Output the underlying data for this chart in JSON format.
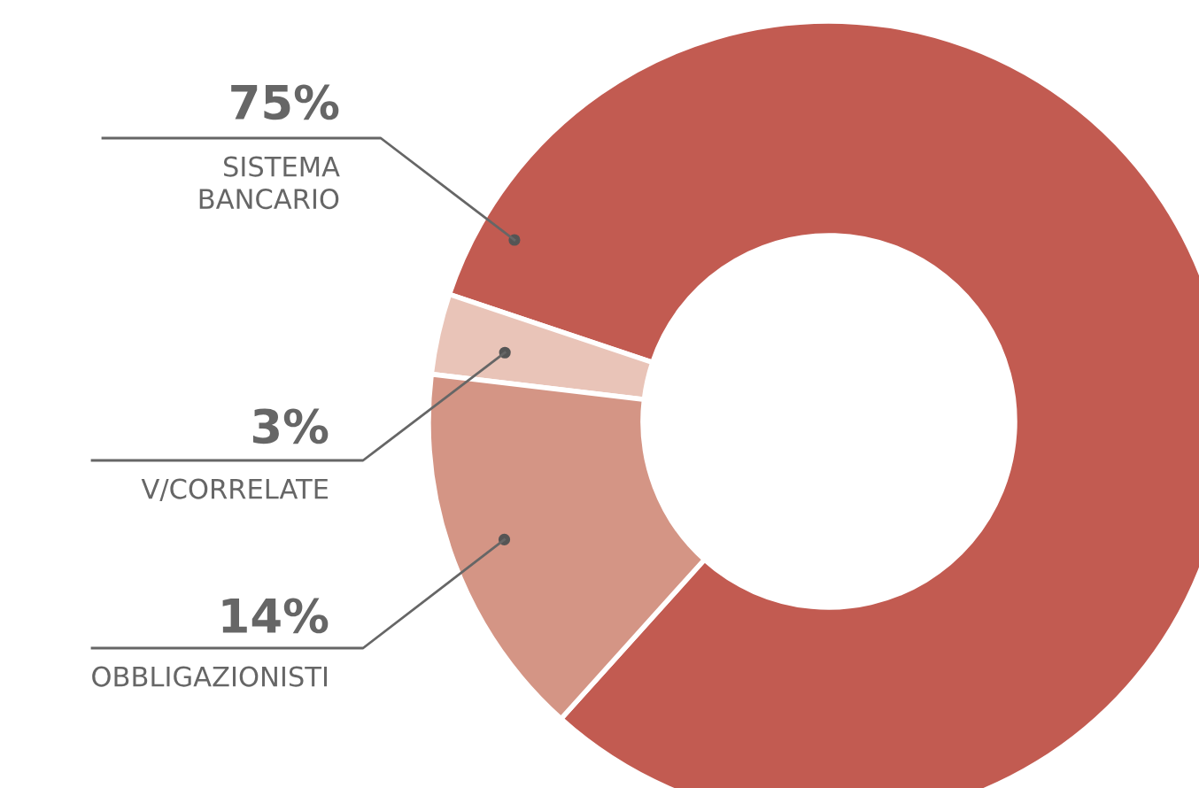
{
  "chart_data": {
    "type": "donut",
    "categories": [
      "SISTEMA\nBANCARIO",
      "V/CORRELATE",
      "OBBLIGAZIONISTI"
    ],
    "values": [
      75,
      3,
      14
    ],
    "value_labels": [
      "75%",
      "3%",
      "14%"
    ],
    "colors": [
      "#c25b51",
      "#e9c4b8",
      "#d49585"
    ],
    "legend": false
  }
}
